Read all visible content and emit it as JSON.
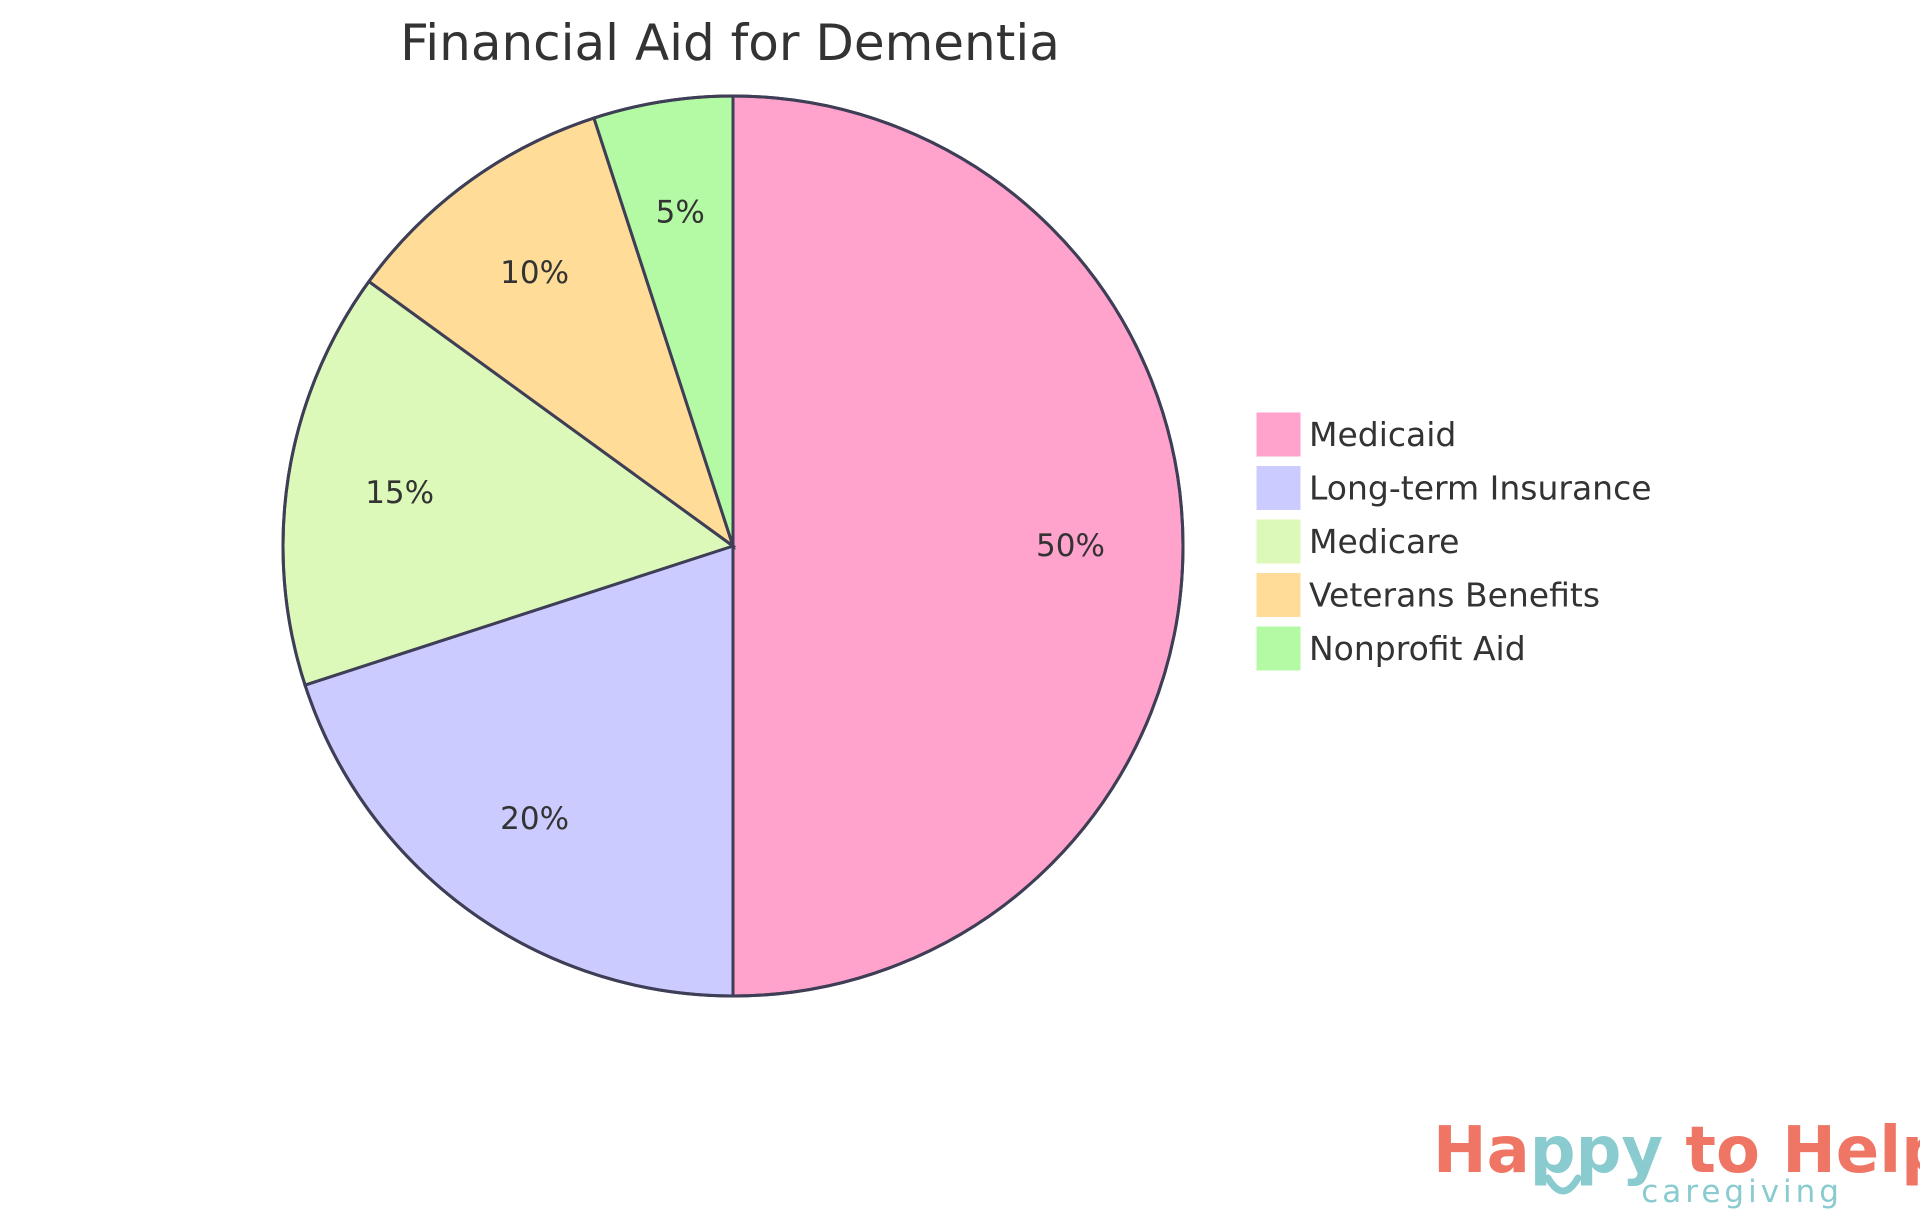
{
  "chart_data": {
    "type": "pie",
    "title": "Financial Aid for Dementia",
    "categories": [
      "Medicaid",
      "Long-term Insurance",
      "Medicare",
      "Veterans Benefits",
      "Nonprofit Aid"
    ],
    "values": [
      50,
      20,
      15,
      10,
      5
    ],
    "labels": [
      "50%",
      "20%",
      "15%",
      "10%",
      "5%"
    ],
    "colors": [
      "#ffa3cc",
      "#cbcbff",
      "#dcf9b9",
      "#ffdd98",
      "#b4f9a3"
    ],
    "stroke_color": "#3e3e56",
    "legend_position": "right"
  },
  "logo": {
    "main_text": "Happy to Help",
    "sub_text": "caregiving",
    "main_color": "#ef7565",
    "accent_color": "#8acbcf"
  }
}
